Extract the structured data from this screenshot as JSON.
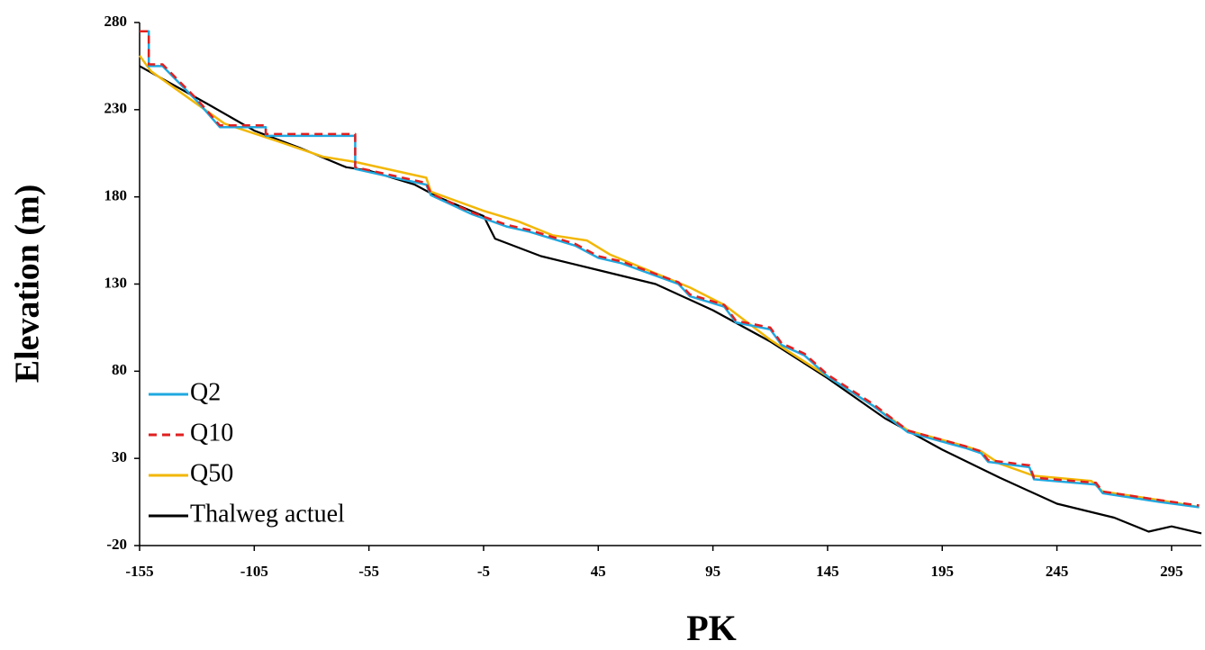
{
  "chart_data": {
    "type": "line",
    "x_label": "PK",
    "y_label": "Elevation (m)",
    "xlim": [
      -155,
      308
    ],
    "ylim": [
      -20,
      280
    ],
    "xticks": [
      -155,
      -105,
      -55,
      -5,
      45,
      95,
      145,
      195,
      245,
      295
    ],
    "yticks": [
      -20,
      30,
      80,
      130,
      180,
      230,
      280
    ],
    "legend": "lower-left",
    "series": [
      {
        "name": "Q2",
        "color": "#1fa9e1",
        "style": "solid",
        "x": [
          -155,
          -151,
          -151,
          -145,
          -130,
          -120,
          -100,
          -100,
          -61,
          -61,
          -30,
          -28,
          -10,
          5,
          15,
          35,
          45,
          55,
          80,
          85,
          100,
          105,
          120,
          125,
          135,
          145,
          165,
          180,
          205,
          212,
          215,
          233,
          235,
          262,
          265,
          290,
          307
        ],
        "values": [
          275,
          275,
          255,
          255,
          235,
          220,
          220,
          215,
          215,
          196,
          187,
          181,
          170,
          163,
          160,
          152,
          145,
          142,
          130,
          123,
          117,
          108,
          104,
          95,
          89,
          77,
          60,
          45,
          36,
          33,
          28,
          25,
          18,
          15,
          10,
          5,
          2
        ]
      },
      {
        "name": "Q10",
        "color": "#e02020",
        "style": "dashed",
        "x": [
          -155,
          -151,
          -151,
          -145,
          -130,
          -120,
          -100,
          -100,
          -61,
          -61,
          -30,
          -28,
          -10,
          5,
          15,
          35,
          45,
          55,
          80,
          85,
          100,
          105,
          120,
          125,
          135,
          145,
          165,
          180,
          205,
          212,
          215,
          233,
          235,
          262,
          265,
          290,
          307
        ],
        "values": [
          275,
          275,
          256,
          256,
          236,
          221,
          221,
          216,
          216,
          197,
          188,
          182,
          171,
          164,
          161,
          153,
          146,
          143,
          131,
          124,
          118,
          109,
          105,
          96,
          90,
          78,
          61,
          46,
          37,
          34,
          29,
          26,
          19,
          16,
          11,
          6,
          3
        ]
      },
      {
        "name": "Q50",
        "color": "#f2b705",
        "style": "solid",
        "x": [
          -155,
          -150,
          -118,
          -95,
          -75,
          -61,
          -30,
          -28,
          -5,
          10,
          25,
          40,
          50,
          85,
          100,
          120,
          145,
          165,
          180,
          205,
          212,
          220,
          235,
          260,
          265,
          290,
          307
        ],
        "values": [
          261,
          252,
          222,
          212,
          203,
          200,
          191,
          183,
          172,
          166,
          158,
          155,
          147,
          128,
          118,
          98,
          77,
          60,
          46,
          37,
          34,
          27,
          20,
          17,
          11,
          6,
          2
        ]
      },
      {
        "name": "Thalweg actuel",
        "color": "#000000",
        "style": "solid",
        "x": [
          -155,
          -140,
          -125,
          -105,
          -85,
          -65,
          -55,
          -35,
          -25,
          -5,
          0,
          20,
          45,
          70,
          95,
          120,
          145,
          170,
          195,
          220,
          245,
          270,
          285,
          295,
          308
        ],
        "values": [
          255,
          244,
          233,
          218,
          208,
          197,
          195,
          187,
          180,
          169,
          156,
          146,
          138,
          130,
          115,
          97,
          76,
          53,
          35,
          19,
          4,
          -4,
          -12,
          -9,
          -13
        ]
      }
    ]
  }
}
